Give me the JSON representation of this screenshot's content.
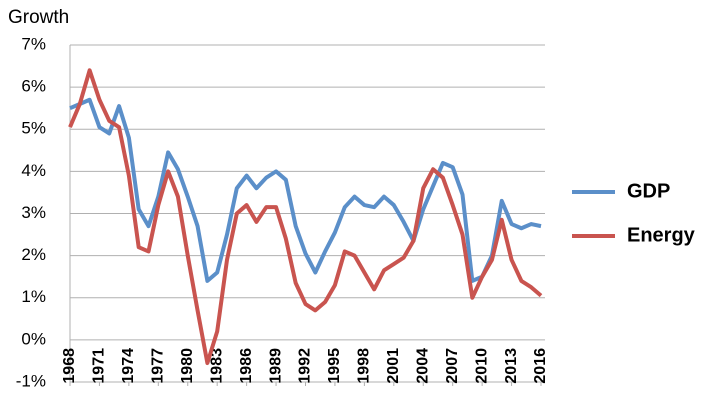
{
  "chart_data": {
    "type": "line",
    "y_label": "Growth",
    "x": [
      1968,
      1969,
      1970,
      1971,
      1972,
      1973,
      1974,
      1975,
      1976,
      1977,
      1978,
      1979,
      1980,
      1981,
      1982,
      1983,
      1984,
      1985,
      1986,
      1987,
      1988,
      1989,
      1990,
      1991,
      1992,
      1993,
      1994,
      1995,
      1996,
      1997,
      1998,
      1999,
      2000,
      2001,
      2002,
      2003,
      2004,
      2005,
      2006,
      2007,
      2008,
      2009,
      2010,
      2011,
      2012,
      2013,
      2014,
      2015,
      2016
    ],
    "series": [
      {
        "name": "GDP",
        "color": "#5b8fc9",
        "values": [
          5.5,
          5.6,
          5.7,
          5.05,
          4.9,
          5.55,
          4.8,
          3.1,
          2.7,
          3.4,
          4.45,
          4.05,
          3.4,
          2.7,
          1.4,
          1.6,
          2.5,
          3.6,
          3.9,
          3.6,
          3.85,
          4.0,
          3.8,
          2.7,
          2.05,
          1.6,
          2.1,
          2.55,
          3.15,
          3.4,
          3.2,
          3.15,
          3.4,
          3.2,
          2.8,
          2.35,
          3.1,
          3.65,
          4.2,
          4.1,
          3.45,
          1.4,
          1.5,
          2.0,
          3.3,
          2.75,
          2.65,
          2.75,
          2.7
        ]
      },
      {
        "name": "Energy",
        "color": "#c9544f",
        "values": [
          5.05,
          5.6,
          6.4,
          5.7,
          5.2,
          5.05,
          3.9,
          2.2,
          2.1,
          3.2,
          4.0,
          3.4,
          2.0,
          0.7,
          -0.55,
          0.2,
          1.9,
          3.0,
          3.2,
          2.8,
          3.15,
          3.15,
          2.4,
          1.35,
          0.85,
          0.7,
          0.9,
          1.3,
          2.1,
          2.0,
          1.6,
          1.2,
          1.65,
          1.8,
          1.95,
          2.35,
          3.6,
          4.05,
          3.85,
          3.2,
          2.5,
          1.0,
          1.5,
          1.9,
          2.85,
          1.9,
          1.4,
          1.25,
          1.05
        ]
      }
    ],
    "xlim": [
      1968,
      2016
    ],
    "xticks": [
      1968,
      1971,
      1974,
      1977,
      1980,
      1983,
      1986,
      1989,
      1992,
      1995,
      1998,
      2001,
      2004,
      2007,
      2010,
      2013,
      2016
    ],
    "ylim": [
      -1,
      7
    ],
    "yticks": [
      {
        "value": -1,
        "label": "-1%"
      },
      {
        "value": 0,
        "label": "0%"
      },
      {
        "value": 1,
        "label": "1%"
      },
      {
        "value": 2,
        "label": "2%"
      },
      {
        "value": 3,
        "label": "3%"
      },
      {
        "value": 4,
        "label": "4%"
      },
      {
        "value": 5,
        "label": "5%"
      },
      {
        "value": 6,
        "label": "6%"
      },
      {
        "value": 7,
        "label": "7%"
      }
    ],
    "grid": true,
    "legend": "right"
  }
}
